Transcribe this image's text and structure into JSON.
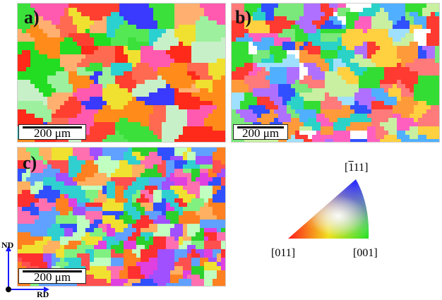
{
  "panels": [
    {
      "label": "a)",
      "scale_text": "200 μm"
    },
    {
      "label": "b)",
      "scale_text": "200 μm"
    },
    {
      "label": "c)",
      "scale_text": "200 μm"
    }
  ],
  "axes": {
    "vertical": "ND",
    "horizontal": "RD"
  },
  "ipf": {
    "top_label_bar": "1",
    "top_label_rest": "11",
    "left_label": "[011]",
    "right_label": "[001]",
    "colors": {
      "red": "#ff1a1a",
      "green": "#22e022",
      "blue": "#2a2aff"
    }
  }
}
